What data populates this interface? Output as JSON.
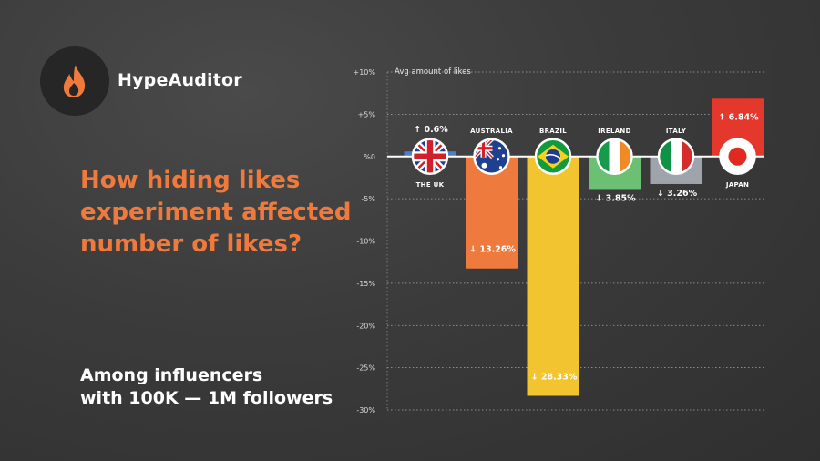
{
  "brand": {
    "name": "HypeAuditor",
    "logo_icon": "flame-icon",
    "logo_color": "#f07a3c"
  },
  "headline": "How hiding likes experiment affected number of likes?",
  "subtitle": [
    "Among influencers",
    "with 100K — 1M followers"
  ],
  "colors": {
    "accent": "#f07a3c",
    "uk": "#4a7fd0",
    "australia": "#ee7a3e",
    "brazil": "#f2c530",
    "ireland": "#6cc073",
    "italy": "#9ea3ac",
    "japan": "#e5382d"
  },
  "chart_data": {
    "type": "bar",
    "ylabel": "Avg amount of likes",
    "ylim": [
      -30,
      10
    ],
    "yticks": [
      10,
      5,
      0,
      -5,
      -10,
      -15,
      -20,
      -25,
      -30
    ],
    "ytick_labels": [
      "+10%",
      "+5%",
      "%0",
      "-5%",
      "-10%",
      "-15%",
      "-20%",
      "-25%",
      "-30%"
    ],
    "grid": true,
    "categories": [
      "THE UK",
      "AUSTRALIA",
      "BRAZIL",
      "IRELAND",
      "ITALY",
      "JAPAN"
    ],
    "values": [
      0.6,
      -13.26,
      -28.33,
      -3.85,
      -3.26,
      6.84
    ],
    "data_labels": [
      "↑ 0.6%",
      "↓ 13.26%",
      "↓ 28.33%",
      "↓ 3.85%",
      "↓ 3.26%",
      "↑ 6.84%"
    ],
    "bar_colors": [
      "#4a7fd0",
      "#ee7a3e",
      "#f2c530",
      "#6cc073",
      "#9ea3ac",
      "#e5382d"
    ],
    "flag_icons": [
      "uk-flag-icon",
      "australia-flag-icon",
      "brazil-flag-icon",
      "ireland-flag-icon",
      "italy-flag-icon",
      "japan-flag-icon"
    ]
  }
}
